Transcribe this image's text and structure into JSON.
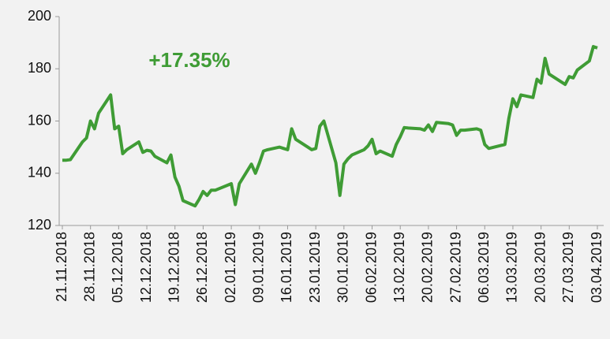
{
  "chart_data": {
    "type": "line",
    "annotation": "+17.35%",
    "color": "#3f9c35",
    "x": [
      "21.11.2018",
      "22.11.2018",
      "23.11.2018",
      "26.11.2018",
      "27.11.2018",
      "28.11.2018",
      "29.11.2018",
      "30.11.2018",
      "03.12.2018",
      "04.12.2018",
      "05.12.2018",
      "06.12.2018",
      "07.12.2018",
      "10.12.2018",
      "11.12.2018",
      "12.12.2018",
      "13.12.2018",
      "14.12.2018",
      "17.12.2018",
      "18.12.2018",
      "19.12.2018",
      "20.12.2018",
      "21.12.2018",
      "24.12.2018",
      "25.12.2018",
      "26.12.2018",
      "27.12.2018",
      "28.12.2018",
      "29.12.2018",
      "02.01.2019",
      "03.01.2019",
      "04.01.2019",
      "07.01.2019",
      "08.01.2019",
      "09.01.2019",
      "10.01.2019",
      "11.01.2019",
      "14.01.2019",
      "15.01.2019",
      "16.01.2019",
      "17.01.2019",
      "18.01.2019",
      "21.01.2019",
      "22.01.2019",
      "23.01.2019",
      "24.01.2019",
      "25.01.2019",
      "28.01.2019",
      "29.01.2019",
      "30.01.2019",
      "31.01.2019",
      "01.02.2019",
      "04.02.2019",
      "05.02.2019",
      "06.02.2019",
      "07.02.2019",
      "08.02.2019",
      "11.02.2019",
      "12.02.2019",
      "13.02.2019",
      "14.02.2019",
      "15.02.2019",
      "18.02.2019",
      "19.02.2019",
      "20.02.2019",
      "21.02.2019",
      "22.02.2019",
      "25.02.2019",
      "26.02.2019",
      "27.02.2019",
      "28.02.2019",
      "01.03.2019",
      "04.03.2019",
      "05.03.2019",
      "06.03.2019",
      "07.03.2019",
      "11.03.2019",
      "12.03.2019",
      "13.03.2019",
      "14.03.2019",
      "15.03.2019",
      "18.03.2019",
      "19.03.2019",
      "20.03.2019",
      "21.03.2019",
      "22.03.2019",
      "25.03.2019",
      "26.03.2019",
      "27.03.2019",
      "28.03.2019",
      "29.03.2019",
      "01.04.2019",
      "02.04.2019",
      "03.04.2019"
    ],
    "values": [
      145,
      145,
      145.2,
      152,
      153.5,
      160,
      157,
      163,
      170,
      157,
      158,
      147.5,
      149,
      152,
      148,
      148.8,
      148.5,
      146.5,
      144,
      147,
      138.5,
      135,
      129.5,
      127.5,
      130,
      133,
      131.5,
      133.5,
      133.5,
      136,
      128,
      136,
      143.5,
      140,
      144,
      148.5,
      149,
      150,
      149.5,
      149,
      157,
      153,
      150,
      149,
      149.5,
      158,
      160,
      144,
      131.5,
      143.5,
      145.5,
      147,
      149,
      150.5,
      153,
      147.5,
      148.5,
      146.5,
      151,
      154,
      157.5,
      157.3,
      157,
      156.5,
      158.5,
      156,
      159.5,
      159,
      158.5,
      154.5,
      156.5,
      156.5,
      157,
      156.5,
      151,
      149.5,
      151,
      161,
      168.5,
      165.5,
      170,
      169,
      176,
      174.5,
      184,
      178,
      175,
      174,
      177,
      176.5,
      179.5,
      183,
      188.5,
      188
    ],
    "xlim": [
      "21.11.2018",
      "03.04.2019"
    ],
    "xticks": [
      "21.11.2018",
      "28.11.2018",
      "05.12.2018",
      "12.12.2018",
      "19.12.2018",
      "26.12.2018",
      "02.01.2019",
      "09.01.2019",
      "16.01.2019",
      "23.01.2019",
      "30.01.2019",
      "06.02.2019",
      "13.02.2019",
      "20.02.2019",
      "27.02.2019",
      "06.03.2019",
      "13.03.2019",
      "20.03.2019",
      "27.03.2019",
      "03.04.2019"
    ],
    "ylim": [
      120,
      200
    ],
    "yticks": [
      120,
      140,
      160,
      180,
      200
    ]
  }
}
